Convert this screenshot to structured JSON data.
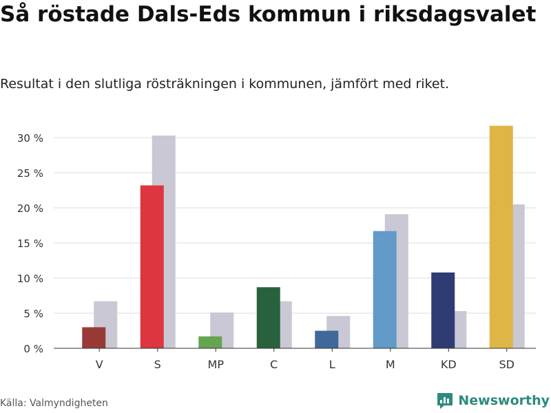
{
  "header": {
    "title": "Så röstade Dals-Eds kommun i riksdagsvalet",
    "subtitle": "Resultat i den slutliga rösträkningen i kommunen, jämfört med riket."
  },
  "footer": {
    "source": "Källa: Valmyndigheten",
    "brand": "Newsworthy"
  },
  "colors": {
    "national_bar": "#c9c8d4",
    "grid": "#dddddd",
    "axis": "#333333",
    "brand": "#2d8a7e"
  },
  "chart_data": {
    "type": "bar",
    "title": "Så röstade Dals-Eds kommun i riksdagsvalet",
    "xlabel": "",
    "ylabel": "",
    "ylim": [
      0,
      30
    ],
    "yticks": [
      0,
      5,
      10,
      15,
      20,
      25,
      30
    ],
    "ytick_labels": [
      "0 %",
      "5 %",
      "10 %",
      "15 %",
      "20 %",
      "25 %",
      "30 %"
    ],
    "categories": [
      "V",
      "S",
      "MP",
      "C",
      "L",
      "M",
      "KD",
      "SD"
    ],
    "category_colors": [
      "#993a36",
      "#dd3640",
      "#67a452",
      "#28623c",
      "#40689a",
      "#629ac8",
      "#2f3c73",
      "#dfb546"
    ],
    "series": [
      {
        "name": "Dals-Eds kommun",
        "values": [
          3.0,
          23.2,
          1.7,
          8.7,
          2.5,
          16.7,
          10.8,
          31.7
        ]
      },
      {
        "name": "Riket",
        "values": [
          6.7,
          30.3,
          5.1,
          6.7,
          4.6,
          19.1,
          5.3,
          20.5
        ]
      }
    ],
    "grid": true
  }
}
